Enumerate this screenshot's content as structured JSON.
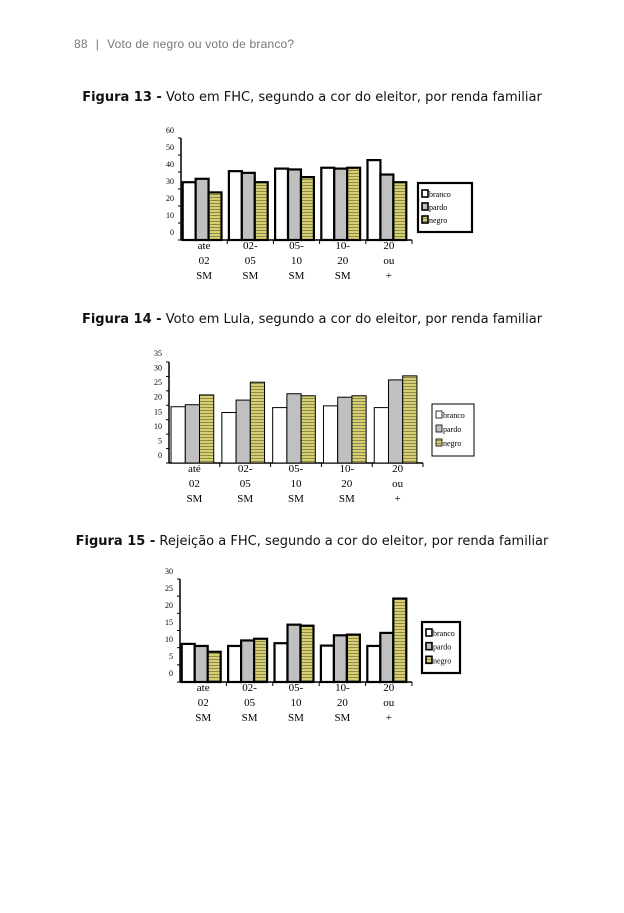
{
  "header": {
    "page_number": "88",
    "separator": "|",
    "running_title": "Voto de negro ou voto de branco?"
  },
  "figures": [
    {
      "label": "Figura 13 -",
      "caption": "Voto em FHC, segundo a cor do eleitor, por renda familiar"
    },
    {
      "label": "Figura 14 -",
      "caption": "Voto em Lula, segundo a cor do eleitor, por renda familiar"
    },
    {
      "label": "Figura 15 -",
      "caption": "Rejeição a FHC, segundo a cor do eleitor, por renda familiar"
    }
  ],
  "colors": {
    "branco": "#ffffff",
    "pardo": "#c0c0c0",
    "negro_a": "#d8d070",
    "negro_b": "#8a8a50"
  },
  "chart_data": [
    {
      "type": "bar",
      "title": "Voto em FHC, segundo a cor do eleitor, por renda familiar",
      "categories": [
        [
          "ate",
          "02",
          "SM"
        ],
        [
          "02-",
          "05",
          "SM"
        ],
        [
          "05-",
          "10",
          "SM"
        ],
        [
          "10-",
          "20",
          "SM"
        ],
        [
          "20",
          "ou",
          "+"
        ]
      ],
      "yticks": [
        0,
        10,
        20,
        30,
        40,
        50,
        60
      ],
      "ylim": [
        0,
        60
      ],
      "legend_position": "right",
      "series": [
        {
          "name": "branco",
          "values": [
            34,
            40.5,
            42,
            42.5,
            47
          ]
        },
        {
          "name": "pardo",
          "values": [
            36,
            39.5,
            41.5,
            42,
            38.5
          ]
        },
        {
          "name": "negro",
          "values": [
            28,
            34,
            37,
            42.5,
            34
          ]
        }
      ]
    },
    {
      "type": "bar",
      "title": "Voto em Lula, segundo a cor do eleitor, por renda familiar",
      "categories": [
        [
          "até",
          "02",
          "SM"
        ],
        [
          "02-",
          "05",
          "SM"
        ],
        [
          "05-",
          "10",
          "SM"
        ],
        [
          "10-",
          "20",
          "SM"
        ],
        [
          "20",
          "ou",
          "+"
        ]
      ],
      "yticks": [
        0,
        5,
        10,
        15,
        20,
        25,
        30,
        35
      ],
      "ylim": [
        0,
        35
      ],
      "legend_position": "right",
      "series": [
        {
          "name": "branco",
          "values": [
            19.5,
            17.5,
            19.2,
            19.8,
            19.2
          ]
        },
        {
          "name": "pardo",
          "values": [
            20.2,
            21.8,
            24,
            22.8,
            28.8
          ]
        },
        {
          "name": "negro",
          "values": [
            23.6,
            28,
            23.3,
            23.3,
            30.2
          ]
        }
      ]
    },
    {
      "type": "bar",
      "title": "Rejeição a FHC, segundo a cor do eleitor, por renda familiar",
      "categories": [
        [
          "ate",
          "02",
          "SM"
        ],
        [
          "02-",
          "05",
          "SM"
        ],
        [
          "05-",
          "10",
          "SM"
        ],
        [
          "10-",
          "20",
          "SM"
        ],
        [
          "20",
          "ou",
          "+"
        ]
      ],
      "yticks": [
        0,
        5,
        10,
        15,
        20,
        25,
        30
      ],
      "ylim": [
        0,
        30
      ],
      "legend_position": "right",
      "series": [
        {
          "name": "branco",
          "values": [
            11.1,
            10.5,
            11.3,
            10.6,
            10.5
          ]
        },
        {
          "name": "pardo",
          "values": [
            10.5,
            12.1,
            16.7,
            13.6,
            14.3
          ]
        },
        {
          "name": "negro",
          "values": [
            8.8,
            12.6,
            16.4,
            13.8,
            24.3
          ]
        }
      ]
    }
  ]
}
